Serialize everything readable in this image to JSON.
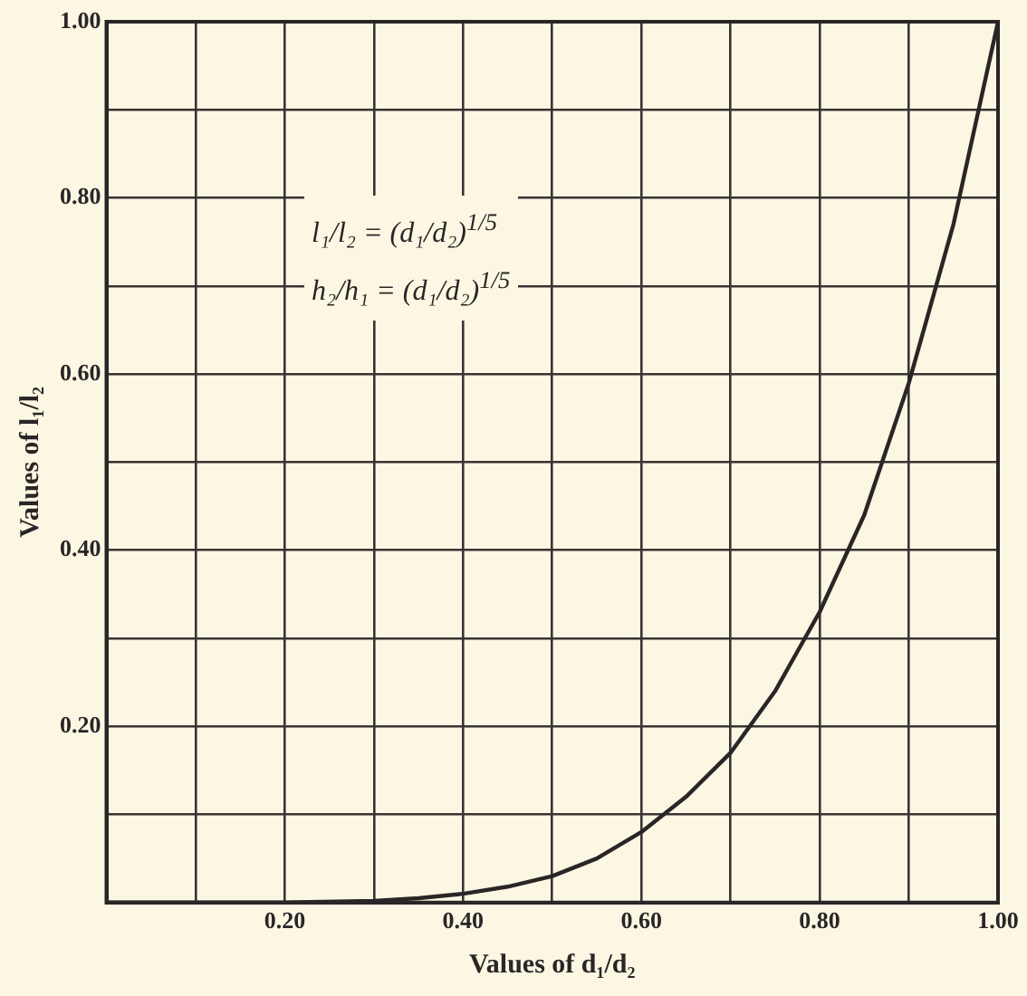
{
  "chart_data": {
    "type": "line",
    "xlabel": "Values of d₁/d₂",
    "ylabel": "Values of l₁/l₂",
    "annotations": [
      "l₁/l₂ = (d₁/d₂)$^{1/5}$",
      "h₂/h₁ = (d₁/d₂)$^{1/5}$"
    ],
    "x": [
      0,
      0.1,
      0.2,
      0.3,
      0.35,
      0.4,
      0.45,
      0.5,
      0.55,
      0.6,
      0.65,
      0.7,
      0.75,
      0.8,
      0.85,
      0.9,
      0.95,
      1
    ],
    "series": [
      {
        "color": "#2a2526",
        "values": [
          0,
          0,
          0,
          0.002,
          0.005,
          0.01,
          0.018,
          0.03,
          0.05,
          0.08,
          0.12,
          0.17,
          0.24,
          0.33,
          0.44,
          0.59,
          0.77,
          1
        ]
      }
    ],
    "xlim": [
      0,
      1
    ],
    "ylim": [
      0,
      1
    ],
    "xticks": [
      {
        "value": 0,
        "label": null
      },
      {
        "value": 0.1,
        "label": null
      },
      {
        "value": 0.2,
        "label": "0.20"
      },
      {
        "value": 0.3,
        "label": null
      },
      {
        "value": 0.4,
        "label": "0.40"
      },
      {
        "value": 0.5,
        "label": null
      },
      {
        "value": 0.6,
        "label": "0.60"
      },
      {
        "value": 0.7,
        "label": null
      },
      {
        "value": 0.8,
        "label": "0.80"
      },
      {
        "value": 0.9,
        "label": null
      },
      {
        "value": 1,
        "label": "1.00"
      }
    ],
    "yticks": [
      {
        "value": 0,
        "label": null
      },
      {
        "value": 0.1,
        "label": null
      },
      {
        "value": 0.2,
        "label": "0.20"
      },
      {
        "value": 0.3,
        "label": null
      },
      {
        "value": 0.4,
        "label": "0.40"
      },
      {
        "value": 0.5,
        "label": null
      },
      {
        "value": 0.6,
        "label": "0.60"
      },
      {
        "value": 0.7,
        "label": null
      },
      {
        "value": 0.8,
        "label": "0.80"
      },
      {
        "value": 0.9,
        "label": null
      },
      {
        "value": 1,
        "label": "1.00"
      }
    ],
    "grid": true,
    "legend": false,
    "marker": "none",
    "line_style": "solid"
  }
}
